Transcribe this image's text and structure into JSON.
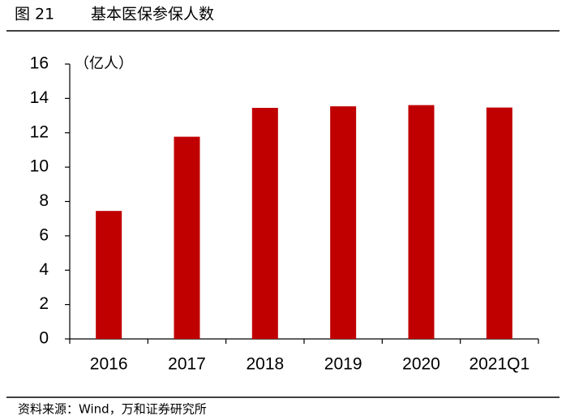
{
  "chart_data": {
    "type": "bar",
    "figure_label": "图 21",
    "title": "基本医保参保人数",
    "unit_label": "（亿人）",
    "categories": [
      "2016",
      "2017",
      "2018",
      "2019",
      "2020",
      "2021Q1"
    ],
    "values": [
      7.45,
      11.77,
      13.45,
      13.54,
      13.61,
      13.47
    ],
    "color": "#c00000",
    "ylim": [
      0,
      16
    ],
    "yticks": [
      0,
      2,
      4,
      6,
      8,
      10,
      12,
      14,
      16
    ],
    "grid": false,
    "source": "资料来源：Wind，万和证券研究所"
  }
}
